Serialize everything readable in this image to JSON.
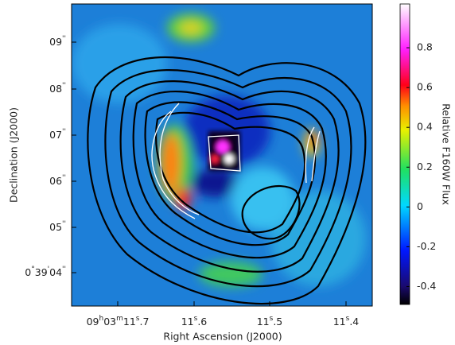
{
  "chart_data": {
    "type": "image",
    "x_label": "Right Ascension (J2000)",
    "y_label": "Declination (J2000)",
    "x_tick_labels": [
      "09h03m11s.7",
      "11s.6",
      "11s.5",
      "11s.4"
    ],
    "y_tick_labels": [
      "09''",
      "08''",
      "07''",
      "06''",
      "05''",
      "0°39'04''"
    ],
    "colorbar": {
      "label": "Relative F160W Flux",
      "ylim": [
        -0.49,
        1.02
      ],
      "yticks": [
        -0.4,
        -0.2,
        0,
        0.2,
        0.4,
        0.6,
        0.8
      ]
    }
  }
}
